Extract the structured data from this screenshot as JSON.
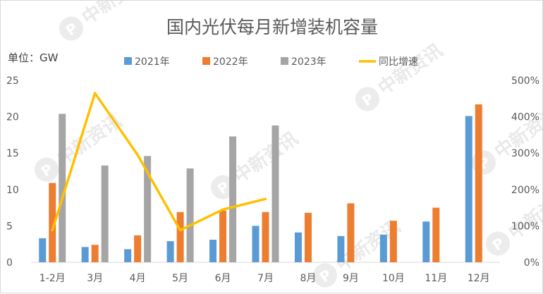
{
  "chart_data": {
    "type": "bar",
    "title": "国内光伏每月新增装机容量",
    "unit_label": "单位：GW",
    "categories": [
      "1-2月",
      "3月",
      "4月",
      "5月",
      "6月",
      "7月",
      "8月",
      "9月",
      "10月",
      "11月",
      "12月"
    ],
    "series": [
      {
        "name": "2021年",
        "type": "bar",
        "axis": "left",
        "color": "#5b9bd5",
        "values": [
          3.3,
          2.1,
          1.8,
          2.9,
          3.1,
          5.0,
          4.1,
          3.6,
          3.8,
          5.6,
          20.1
        ]
      },
      {
        "name": "2022年",
        "type": "bar",
        "axis": "left",
        "color": "#ed7d31",
        "values": [
          10.9,
          2.4,
          3.7,
          6.9,
          7.1,
          6.9,
          6.8,
          8.1,
          5.7,
          7.5,
          21.7
        ]
      },
      {
        "name": "2023年",
        "type": "bar",
        "axis": "left",
        "color": "#a5a5a5",
        "values": [
          20.4,
          13.3,
          14.6,
          12.9,
          17.3,
          18.8,
          null,
          null,
          null,
          null,
          null
        ]
      },
      {
        "name": "同比增速",
        "type": "line",
        "axis": "right",
        "color": "#ffc000",
        "values": [
          0.88,
          4.65,
          2.95,
          0.88,
          1.45,
          1.74,
          null,
          null,
          null,
          null,
          null
        ]
      }
    ],
    "y_left": {
      "min": 0,
      "max": 25,
      "ticks": [
        "0",
        "5",
        "10",
        "15",
        "20",
        "25"
      ]
    },
    "y_right": {
      "min": 0,
      "max": 5,
      "ticks": [
        "0%",
        "100%",
        "200%",
        "300%",
        "400%",
        "500%"
      ]
    },
    "grid": false,
    "legend_position": "top"
  },
  "watermark": {
    "text": "中新资讯",
    "icon_letter": "P"
  }
}
